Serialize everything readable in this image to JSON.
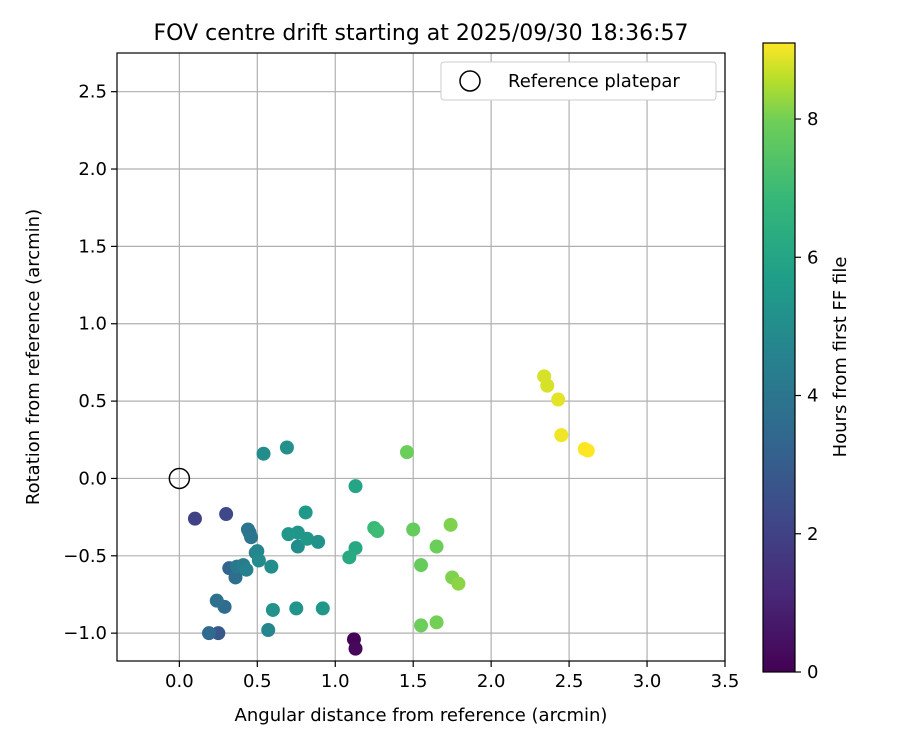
{
  "chart_data": {
    "type": "scatter",
    "title": "FOV centre drift starting at 2025/09/30 18:36:57",
    "xlabel": "Angular distance from reference (arcmin)",
    "ylabel": "Rotation from reference (arcmin)",
    "xlim": [
      -0.4,
      3.5
    ],
    "ylim": [
      -1.18,
      2.75
    ],
    "xticks": [
      0.0,
      0.5,
      1.0,
      1.5,
      2.0,
      2.5,
      3.0,
      3.5
    ],
    "xtick_labels": [
      "0.0",
      "0.5",
      "1.0",
      "1.5",
      "2.0",
      "2.5",
      "3.0",
      "3.5"
    ],
    "yticks": [
      -1.0,
      -0.5,
      0.0,
      0.5,
      1.0,
      1.5,
      2.0,
      2.5
    ],
    "ytick_labels": [
      "−1.0",
      "−0.5",
      "0.0",
      "0.5",
      "1.0",
      "1.5",
      "2.0",
      "2.5"
    ],
    "grid": true,
    "legend": {
      "position": "top-right",
      "entries": [
        "Reference platepar"
      ]
    },
    "reference_point": {
      "x": 0.0,
      "y": 0.0,
      "label": "Reference platepar"
    },
    "colorbar": {
      "label": "Hours from first FF file",
      "range": [
        0,
        9.1
      ],
      "ticks": [
        0,
        2,
        4,
        6,
        8
      ],
      "tick_labels": [
        "0",
        "2",
        "4",
        "6",
        "8"
      ],
      "colormap": "viridis"
    },
    "points": [
      {
        "x": 1.12,
        "y": -1.04,
        "h": 0.1
      },
      {
        "x": 1.13,
        "y": -1.1,
        "h": 0.2
      },
      {
        "x": 0.1,
        "y": -0.26,
        "h": 2.0
      },
      {
        "x": 0.3,
        "y": -0.23,
        "h": 2.2
      },
      {
        "x": 0.25,
        "y": -1.0,
        "h": 2.8
      },
      {
        "x": 0.32,
        "y": -0.58,
        "h": 3.3
      },
      {
        "x": 0.19,
        "y": -1.0,
        "h": 3.5
      },
      {
        "x": 0.29,
        "y": -0.83,
        "h": 3.6
      },
      {
        "x": 0.24,
        "y": -0.79,
        "h": 3.8
      },
      {
        "x": 0.36,
        "y": -0.64,
        "h": 3.7
      },
      {
        "x": 0.45,
        "y": -0.35,
        "h": 3.9
      },
      {
        "x": 0.44,
        "y": -0.33,
        "h": 4.0
      },
      {
        "x": 0.46,
        "y": -0.38,
        "h": 4.0
      },
      {
        "x": 0.37,
        "y": -0.57,
        "h": 4.1
      },
      {
        "x": 0.41,
        "y": -0.56,
        "h": 4.3
      },
      {
        "x": 0.43,
        "y": -0.59,
        "h": 4.5
      },
      {
        "x": 0.49,
        "y": -0.48,
        "h": 4.6
      },
      {
        "x": 0.5,
        "y": -0.47,
        "h": 4.7
      },
      {
        "x": 0.57,
        "y": -0.98,
        "h": 4.7
      },
      {
        "x": 0.51,
        "y": -0.53,
        "h": 4.9
      },
      {
        "x": 0.59,
        "y": -0.57,
        "h": 5.0
      },
      {
        "x": 0.54,
        "y": 0.16,
        "h": 5.0
      },
      {
        "x": 0.69,
        "y": 0.2,
        "h": 5.1
      },
      {
        "x": 0.6,
        "y": -0.85,
        "h": 5.2
      },
      {
        "x": 0.76,
        "y": -0.44,
        "h": 5.0
      },
      {
        "x": 0.76,
        "y": -0.35,
        "h": 5.3
      },
      {
        "x": 0.7,
        "y": -0.36,
        "h": 5.4
      },
      {
        "x": 0.75,
        "y": -0.84,
        "h": 5.3
      },
      {
        "x": 0.81,
        "y": -0.22,
        "h": 5.5
      },
      {
        "x": 0.82,
        "y": -0.39,
        "h": 5.4
      },
      {
        "x": 0.89,
        "y": -0.41,
        "h": 5.2
      },
      {
        "x": 0.92,
        "y": -0.84,
        "h": 5.4
      },
      {
        "x": 1.13,
        "y": -0.05,
        "h": 6.0
      },
      {
        "x": 1.13,
        "y": -0.45,
        "h": 6.1
      },
      {
        "x": 1.09,
        "y": -0.51,
        "h": 6.2
      },
      {
        "x": 1.25,
        "y": -0.32,
        "h": 6.9
      },
      {
        "x": 1.27,
        "y": -0.34,
        "h": 7.0
      },
      {
        "x": 1.46,
        "y": 0.17,
        "h": 7.9
      },
      {
        "x": 1.5,
        "y": -0.33,
        "h": 7.8
      },
      {
        "x": 1.55,
        "y": -0.56,
        "h": 7.8
      },
      {
        "x": 1.55,
        "y": -0.95,
        "h": 7.9
      },
      {
        "x": 1.65,
        "y": -0.44,
        "h": 7.9
      },
      {
        "x": 1.65,
        "y": -0.93,
        "h": 8.0
      },
      {
        "x": 1.74,
        "y": -0.3,
        "h": 8.1
      },
      {
        "x": 1.75,
        "y": -0.64,
        "h": 8.1
      },
      {
        "x": 1.79,
        "y": -0.68,
        "h": 8.2
      },
      {
        "x": 2.34,
        "y": 0.66,
        "h": 8.8
      },
      {
        "x": 2.36,
        "y": 0.6,
        "h": 8.8
      },
      {
        "x": 2.43,
        "y": 0.51,
        "h": 8.9
      },
      {
        "x": 2.45,
        "y": 0.28,
        "h": 9.0
      },
      {
        "x": 2.6,
        "y": 0.19,
        "h": 9.1
      },
      {
        "x": 2.62,
        "y": 0.18,
        "h": 9.1
      }
    ]
  }
}
